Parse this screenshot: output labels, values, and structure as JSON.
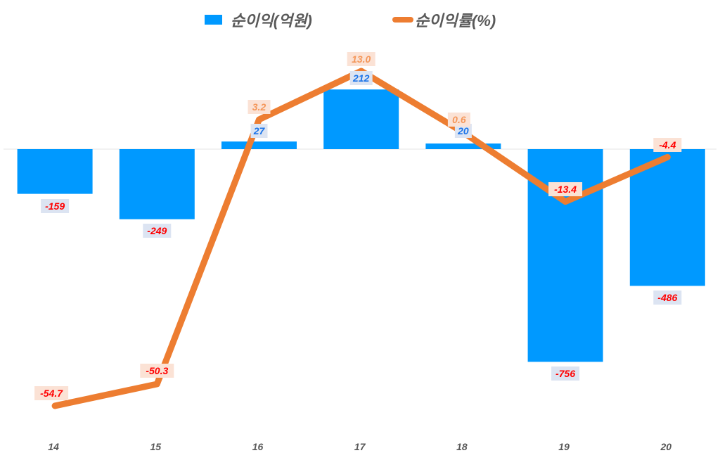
{
  "legend": {
    "bar_label": "순이익(억원)",
    "line_label": "순이익률(%)"
  },
  "colors": {
    "bar": "#0099ff",
    "line": "#ed7d31",
    "bar_label_text_positive": "#1a73e8",
    "bar_label_text_negative": "#ff0000",
    "bar_label_bg": "#dce4f2",
    "line_label_text_positive": "#f4975a",
    "line_label_text_negative": "#ff0000",
    "line_label_bg": "#fbe2d5",
    "axis_text": "#595959",
    "baseline": "#e6e6e6"
  },
  "chart_data": {
    "type": "bar+line",
    "title": "",
    "categories": [
      "14",
      "15",
      "16",
      "17",
      "18",
      "19",
      "20"
    ],
    "series": [
      {
        "name": "순이익(억원)",
        "type": "bar",
        "axis": "primary",
        "values": [
          -159,
          -249,
          27,
          212,
          20,
          -756,
          -486
        ]
      },
      {
        "name": "순이익률(%)",
        "type": "line",
        "axis": "secondary",
        "values": [
          -54.7,
          -50.3,
          3.2,
          13.0,
          0.6,
          -13.4,
          -4.4
        ]
      }
    ],
    "xlabel": "",
    "ylabel": "",
    "legend_position": "top",
    "grid": false,
    "data_labels": true
  }
}
